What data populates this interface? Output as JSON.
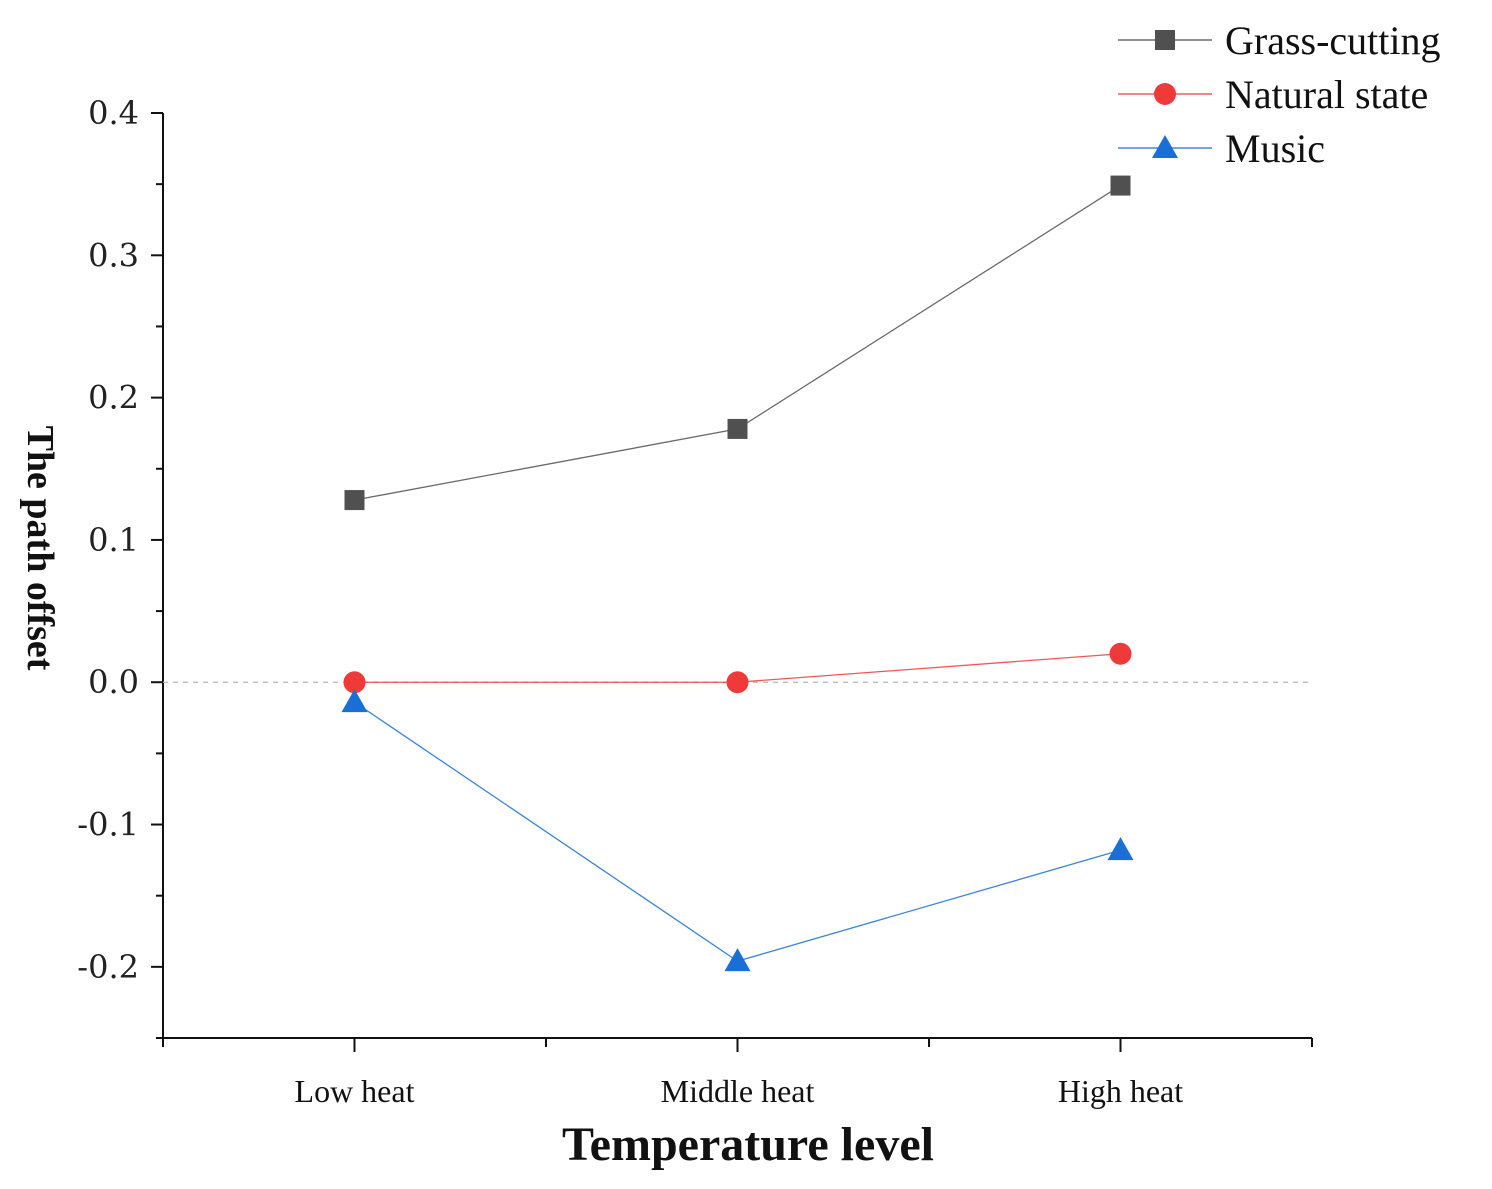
{
  "chart_data": {
    "type": "line",
    "title": "",
    "xlabel": "Temperature level",
    "ylabel": "The path offset",
    "categories": [
      "Low heat",
      "Middle heat",
      "High heat"
    ],
    "ylim": [
      -0.25,
      0.4
    ],
    "yticks": [
      -0.2,
      -0.1,
      0.0,
      0.1,
      0.2,
      0.3,
      0.4
    ],
    "ytick_labels": [
      "-0.2",
      "-0.1",
      "0.0",
      "0.1",
      "0.2",
      "0.3",
      "0.4"
    ],
    "grid": false,
    "reference_line": {
      "y": 0.0,
      "style": "dashed"
    },
    "legend_position": "top-right",
    "series": [
      {
        "name": "Grass-cutting",
        "marker": "square",
        "color": "#505050",
        "values": [
          0.128,
          0.178,
          0.349
        ]
      },
      {
        "name": "Natural state",
        "marker": "circle",
        "color": "#f03a3a",
        "values": [
          0.0,
          0.0,
          0.02
        ]
      },
      {
        "name": "Music",
        "marker": "triangle",
        "color": "#1a6fd6",
        "values": [
          -0.014,
          -0.196,
          -0.118
        ]
      }
    ]
  }
}
